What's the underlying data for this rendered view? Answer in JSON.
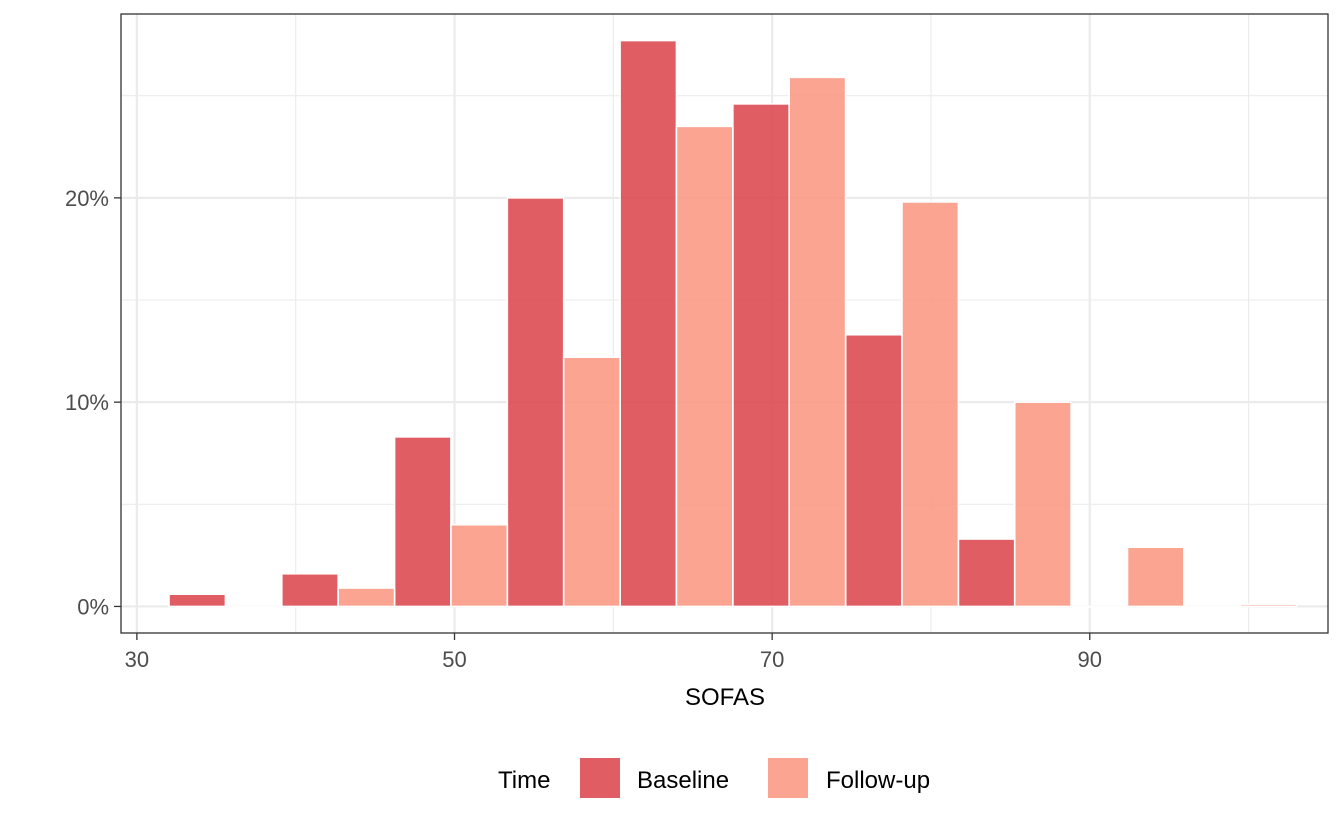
{
  "chart_data": {
    "type": "bar",
    "xlabel": "SOFAS",
    "ylabel": "",
    "xlim": [
      29,
      105
    ],
    "ylim": [
      -0.013,
      0.29
    ],
    "x_ticks": [
      {
        "value": 30,
        "label": "30"
      },
      {
        "value": 50,
        "label": "50"
      },
      {
        "value": 70,
        "label": "70"
      },
      {
        "value": 90,
        "label": "90"
      }
    ],
    "x_minor_ticks": [
      40,
      60,
      80,
      100
    ],
    "y_ticks": [
      {
        "value": 0,
        "label": "0%"
      },
      {
        "value": 0.1,
        "label": "10%"
      },
      {
        "value": 0.2,
        "label": "20%"
      }
    ],
    "y_minor_ticks": [
      0.05,
      0.15,
      0.25
    ],
    "bin_width": 3.55,
    "grid": true,
    "legend": {
      "title": "Time",
      "position": "bottom",
      "entries": [
        {
          "name": "Baseline",
          "color": "#dc474d"
        },
        {
          "name": "Follow-up",
          "color": "#f99782"
        }
      ]
    },
    "series": [
      {
        "name": "Baseline",
        "color": "#dc474d",
        "points": [
          {
            "x": 33.8,
            "value": 0.006
          },
          {
            "x": 40.9,
            "value": 0.016
          },
          {
            "x": 48.0,
            "value": 0.083
          },
          {
            "x": 55.1,
            "value": 0.2
          },
          {
            "x": 62.2,
            "value": 0.277
          },
          {
            "x": 69.3,
            "value": 0.246
          },
          {
            "x": 76.4,
            "value": 0.133
          },
          {
            "x": 83.5,
            "value": 0.033
          },
          {
            "x": 90.6,
            "value": 0.0
          },
          {
            "x": 97.7,
            "value": 0.0
          }
        ]
      },
      {
        "name": "Follow-up",
        "color": "#f99782",
        "points": [
          {
            "x": 37.35,
            "value": 0.0
          },
          {
            "x": 44.45,
            "value": 0.009
          },
          {
            "x": 51.55,
            "value": 0.04
          },
          {
            "x": 58.65,
            "value": 0.122
          },
          {
            "x": 65.75,
            "value": 0.235
          },
          {
            "x": 72.85,
            "value": 0.259
          },
          {
            "x": 79.95,
            "value": 0.198
          },
          {
            "x": 87.05,
            "value": 0.1
          },
          {
            "x": 94.15,
            "value": 0.029
          },
          {
            "x": 101.25,
            "value": 0.001
          }
        ]
      }
    ]
  }
}
